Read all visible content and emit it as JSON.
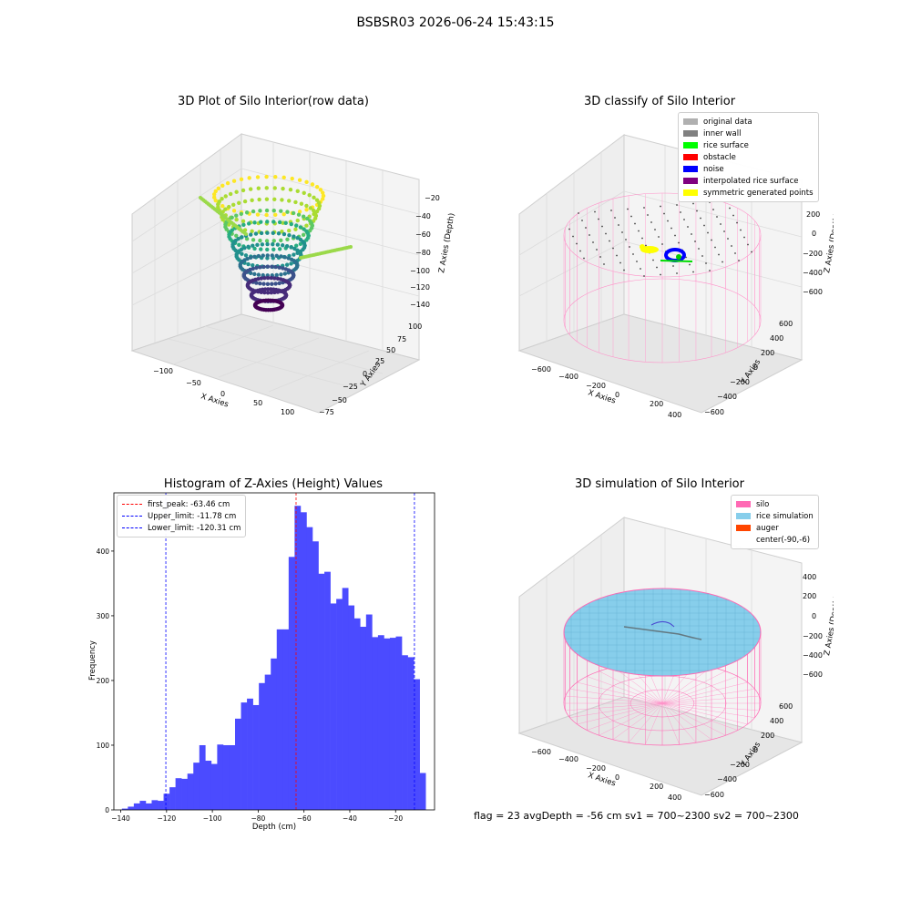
{
  "figure": {
    "suptitle": "BSBSR03 2026-06-24 15:43:15",
    "footer": "flag = 23   avgDepth = -56 cm   sv1 = 700~2300  sv2 = 700~2300"
  },
  "chart_data": [
    {
      "type": "scatter",
      "subtype": "3d-scatter",
      "title": "3D Plot of Silo Interior(row data)",
      "xlabel": "X Axies",
      "ylabel": "Y Axies",
      "zlabel": "Z Axies (Depth)",
      "x_ticks": [
        "−100",
        "−50",
        "0",
        "50",
        "100"
      ],
      "y_ticks": [
        "−75",
        "−50",
        "−25",
        "0",
        "25",
        "50",
        "75",
        "100"
      ],
      "z_ticks": [
        "−20",
        "−40",
        "−60",
        "−80",
        "−100",
        "−120",
        "−140"
      ],
      "zlim": [
        -140,
        -20
      ],
      "colormap": "viridis",
      "grid": true
    },
    {
      "type": "scatter",
      "subtype": "3d-classification",
      "title": "3D classify of Silo Interior",
      "xlabel": "X Axies",
      "ylabel": "Y Axies",
      "zlabel": "Z Axies (Depth)",
      "x_ticks": [
        "−600",
        "−400",
        "−200",
        "0",
        "200",
        "400"
      ],
      "y_ticks": [
        "−600",
        "−400",
        "−200",
        "0",
        "200",
        "400",
        "600"
      ],
      "z_ticks": [
        "200",
        "0",
        "−200",
        "−400",
        "−600"
      ],
      "legend": [
        {
          "label": "original data",
          "color": "#b0b0b0"
        },
        {
          "label": "inner wall",
          "color": "#808080"
        },
        {
          "label": "rice surface",
          "color": "#00ff00"
        },
        {
          "label": "obstacle",
          "color": "#ff0000"
        },
        {
          "label": "noise",
          "color": "#0000ff"
        },
        {
          "label": "interpolated rice surface",
          "color": "#800080"
        },
        {
          "label": "symmetric generated points",
          "color": "#ffff00"
        }
      ],
      "legend_position": "top-right",
      "grid": true
    },
    {
      "type": "bar",
      "subtype": "histogram",
      "title": "Histogram of Z-Axies (Height) Values",
      "xlabel": "Depth (cm)",
      "ylabel": "Frequency",
      "xlim": [
        -143,
        -3
      ],
      "ylim": [
        0,
        490
      ],
      "x_ticks": [
        -140,
        -120,
        -100,
        -80,
        -60,
        -40,
        -20
      ],
      "x_tick_labels": [
        "−140",
        "−120",
        "−100",
        "−80",
        "−60",
        "−40",
        "−20"
      ],
      "y_ticks": [
        0,
        100,
        200,
        300,
        400
      ],
      "bar_color": "#4b4bff",
      "bin_start": -139.5,
      "bin_width": 2.6,
      "values": [
        2,
        5,
        10,
        14,
        10,
        15,
        14,
        25,
        35,
        49,
        48,
        56,
        73,
        100,
        76,
        71,
        101,
        100,
        100,
        141,
        166,
        172,
        162,
        196,
        209,
        234,
        279,
        279,
        391,
        470,
        460,
        437,
        415,
        365,
        368,
        319,
        326,
        343,
        316,
        296,
        283,
        302,
        267,
        270,
        265,
        266,
        268,
        239,
        236,
        202,
        57
      ],
      "vlines": [
        {
          "label": "first_peak: -63.46 cm",
          "x": -63.46,
          "color": "#ff0000"
        },
        {
          "label": "Upper_limit: -11.78 cm",
          "x": -11.78,
          "color": "#0000ff"
        },
        {
          "label": "Lower_limit: -120.31 cm",
          "x": -120.31,
          "color": "#0000ff"
        }
      ],
      "legend_position": "top-left"
    },
    {
      "type": "scatter",
      "subtype": "3d-simulation",
      "title": "3D simulation of Silo Interior",
      "xlabel": "X Axies",
      "ylabel": "Y Axies",
      "zlabel": "Z Axies (Depth)",
      "x_ticks": [
        "−600",
        "−400",
        "−200",
        "0",
        "200",
        "400"
      ],
      "y_ticks": [
        "−600",
        "−400",
        "−200",
        "0",
        "200",
        "400",
        "600"
      ],
      "z_ticks": [
        "400",
        "200",
        "0",
        "−200",
        "−400",
        "−600"
      ],
      "legend": [
        {
          "label": "silo",
          "color": "#ff69b4"
        },
        {
          "label": "rice simulation",
          "color": "#87ceeb"
        },
        {
          "label": "auger",
          "color": "#ff4500"
        },
        {
          "label": "center(-90,-6)",
          "color": ""
        }
      ],
      "legend_position": "top-right",
      "grid": true
    }
  ]
}
